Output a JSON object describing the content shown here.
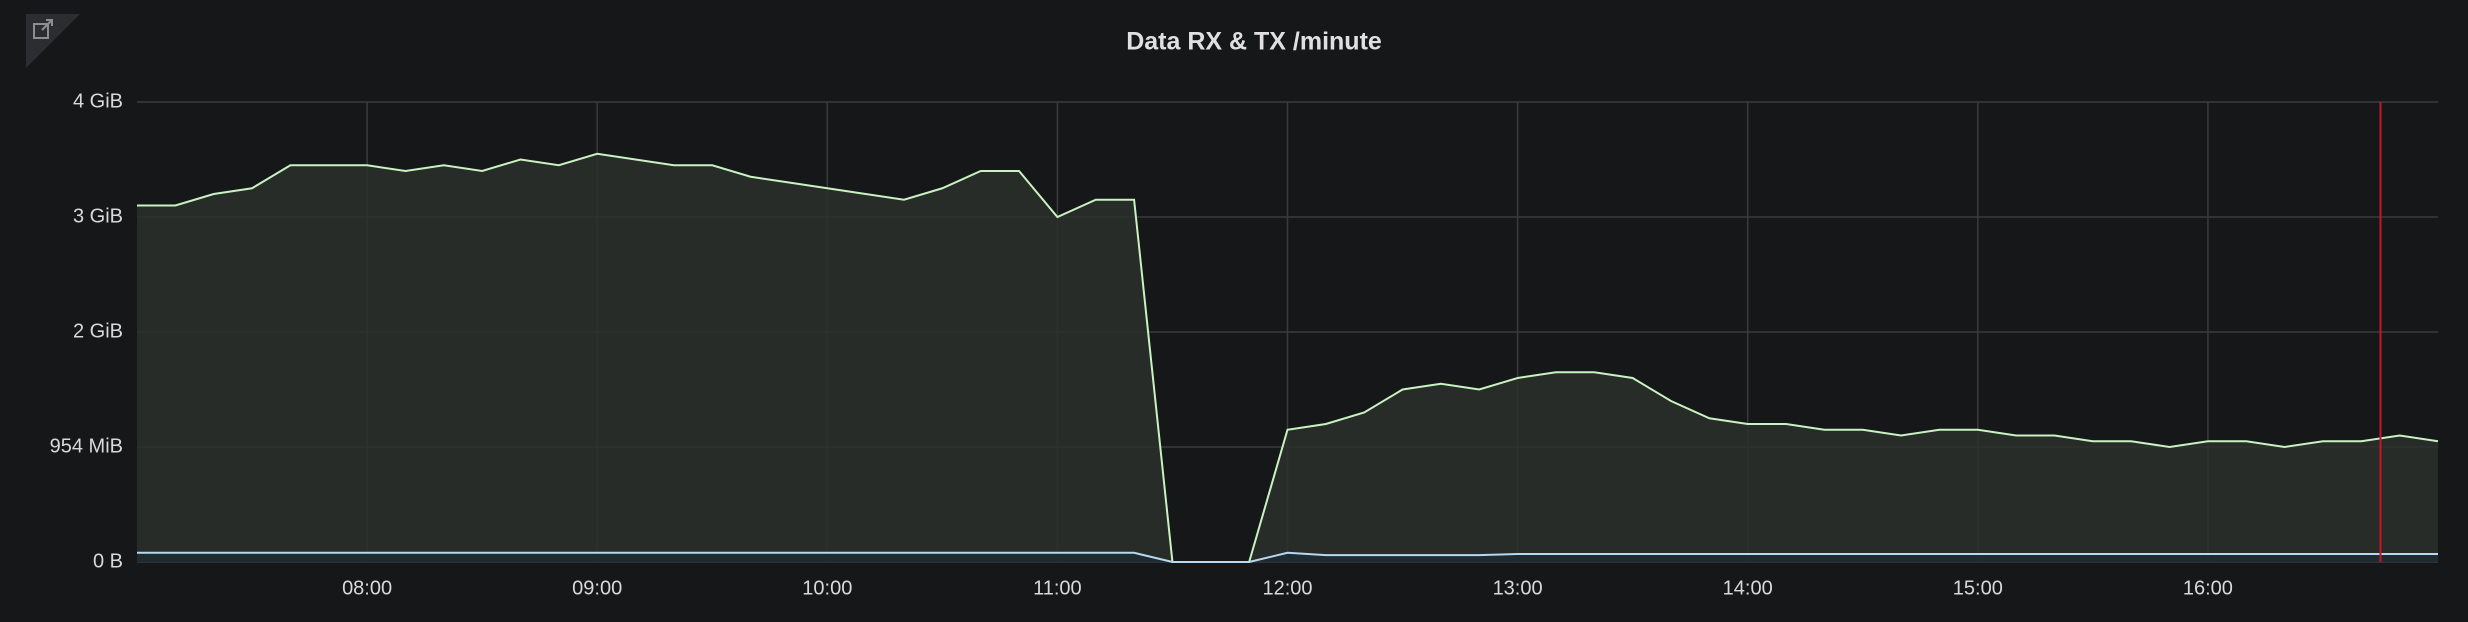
{
  "chart_data": {
    "type": "line",
    "title": "Data RX & TX /minute",
    "x": [
      "07:00",
      "07:10",
      "07:20",
      "07:30",
      "07:40",
      "07:50",
      "08:00",
      "08:10",
      "08:20",
      "08:30",
      "08:40",
      "08:50",
      "09:00",
      "09:10",
      "09:20",
      "09:30",
      "09:40",
      "09:50",
      "10:00",
      "10:10",
      "10:20",
      "10:30",
      "10:40",
      "10:50",
      "11:00",
      "11:10",
      "11:20",
      "11:30",
      "11:40",
      "11:50",
      "12:00",
      "12:10",
      "12:20",
      "12:30",
      "12:40",
      "12:50",
      "13:00",
      "13:10",
      "13:20",
      "13:30",
      "13:40",
      "13:50",
      "14:00",
      "14:10",
      "14:20",
      "14:30",
      "14:40",
      "14:50",
      "15:00",
      "15:10",
      "15:20",
      "15:30",
      "15:40",
      "15:50",
      "16:00",
      "16:10",
      "16:20",
      "16:30",
      "16:40",
      "16:50",
      "17:00"
    ],
    "series": [
      {
        "color": "#c9f2c2",
        "fill": "#2a302c",
        "values": [
          3.1,
          3.1,
          3.2,
          3.25,
          3.45,
          3.45,
          3.45,
          3.4,
          3.45,
          3.4,
          3.5,
          3.45,
          3.55,
          3.5,
          3.45,
          3.45,
          3.35,
          3.3,
          3.25,
          3.2,
          3.15,
          3.25,
          3.4,
          3.4,
          3.0,
          3.15,
          3.15,
          0,
          0,
          0,
          1.15,
          1.2,
          1.3,
          1.5,
          1.55,
          1.5,
          1.6,
          1.65,
          1.65,
          1.6,
          1.4,
          1.25,
          1.2,
          1.2,
          1.15,
          1.15,
          1.1,
          1.15,
          1.15,
          1.1,
          1.1,
          1.05,
          1.05,
          1.0,
          1.05,
          1.05,
          1.0,
          1.05,
          1.05,
          1.1,
          1.05
        ]
      },
      {
        "color": "#b8d7f0",
        "fill": "#1f2a33",
        "values": [
          0.08,
          0.08,
          0.08,
          0.08,
          0.08,
          0.08,
          0.08,
          0.08,
          0.08,
          0.08,
          0.08,
          0.08,
          0.08,
          0.08,
          0.08,
          0.08,
          0.08,
          0.08,
          0.08,
          0.08,
          0.08,
          0.08,
          0.08,
          0.08,
          0.08,
          0.08,
          0.08,
          0,
          0,
          0,
          0.08,
          0.06,
          0.06,
          0.06,
          0.06,
          0.06,
          0.07,
          0.07,
          0.07,
          0.07,
          0.07,
          0.07,
          0.07,
          0.07,
          0.07,
          0.07,
          0.07,
          0.07,
          0.07,
          0.07,
          0.07,
          0.07,
          0.07,
          0.07,
          0.07,
          0.07,
          0.07,
          0.07,
          0.07,
          0.07,
          0.07
        ]
      }
    ],
    "xlim": [
      "07:00",
      "17:00"
    ],
    "xticks": [
      "08:00",
      "09:00",
      "10:00",
      "11:00",
      "12:00",
      "13:00",
      "14:00",
      "15:00",
      "16:00"
    ],
    "ylim": [
      0,
      4
    ],
    "yticks": [
      {
        "value": 0,
        "label": "0 B"
      },
      {
        "value": 1,
        "label": "954 MiB"
      },
      {
        "value": 2,
        "label": "2 GiB"
      },
      {
        "value": 3,
        "label": "3 GiB"
      },
      {
        "value": 4,
        "label": "4 GiB"
      }
    ],
    "grid": true,
    "annotations": [
      {
        "x": "16:45",
        "color": "#c4162a"
      }
    ]
  }
}
